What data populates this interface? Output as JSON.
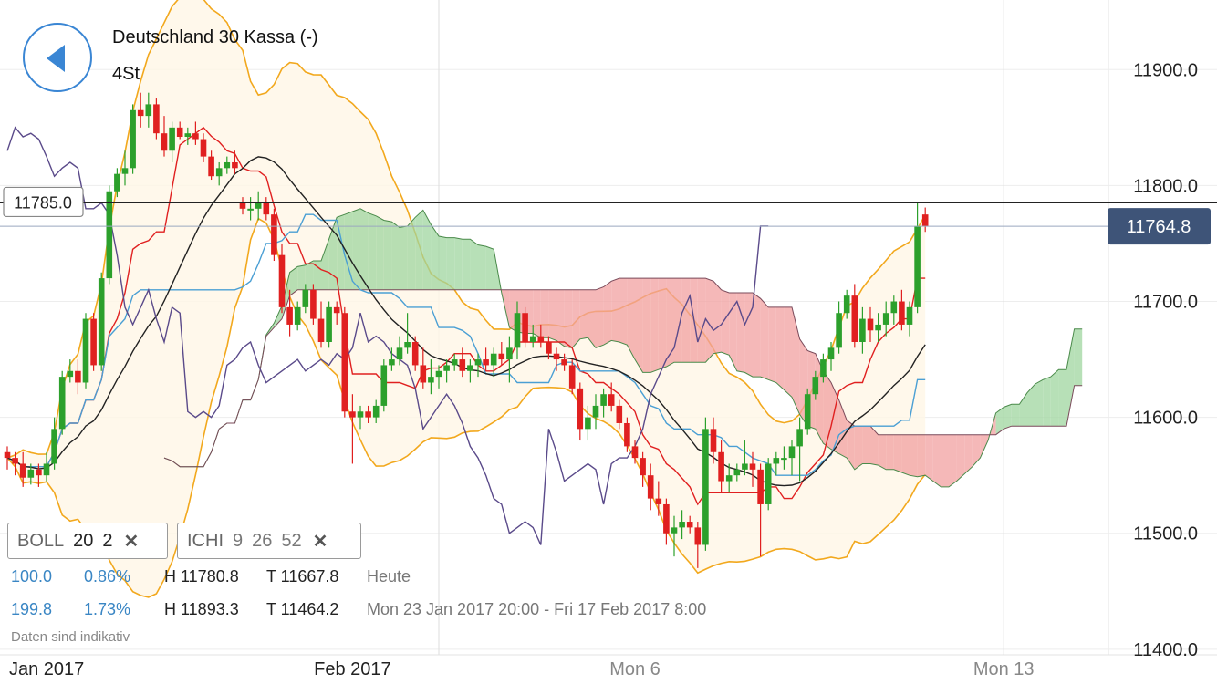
{
  "header": {
    "title": "Deutschland 30 Kassa (-)",
    "timeframe": "4St"
  },
  "indicators": [
    {
      "name": "BOLL",
      "p1": "20",
      "p2": "2",
      "p3": ""
    },
    {
      "name": "ICHI",
      "p1": "9",
      "p2": "26",
      "p3": "52"
    }
  ],
  "stats": {
    "row1": {
      "pct": "100.0",
      "change": "0.86%",
      "high": "H 11780.8",
      "low": "T 11667.8",
      "period": "Heute"
    },
    "row2": {
      "pct": "199.8",
      "change": "1.73%",
      "high": "H 11893.3",
      "low": "T 11464.2",
      "period": "Mon 23 Jan 2017 20:00 - Fri 17 Feb 2017 8:00"
    }
  },
  "disclaimer": "Daten sind indikativ",
  "price_tag": "11764.8",
  "crosshair_tag": "11785.0",
  "colors": {
    "up": "#2ca02c",
    "down": "#e02020",
    "accent": "#3a86d4",
    "bollinger": "#f2a81d",
    "cloud_up": "#9fd69f",
    "cloud_down": "#f2a0a0"
  },
  "chart_data": {
    "type": "candlestick",
    "title": "Deutschland 30 Kassa (-)",
    "ylim": [
      11370,
      11960
    ],
    "y_ticks": [
      "11900.0",
      "11800.0",
      "11700.0",
      "11600.0",
      "11500.0",
      "11400.0"
    ],
    "y_tick_values": [
      11900,
      11800,
      11700,
      11600,
      11500,
      11400
    ],
    "x_labels": [
      "Jan 2017",
      "Feb 2017",
      "Mon 6",
      "Mon 13"
    ],
    "x_label_index": [
      0,
      44,
      80,
      127
    ],
    "x_gridline_index": [
      55,
      127
    ],
    "candles": [
      [
        11570,
        11575,
        11555,
        11565
      ],
      [
        11565,
        11570,
        11550,
        11560
      ],
      [
        11560,
        11570,
        11540,
        11548
      ],
      [
        11548,
        11560,
        11542,
        11555
      ],
      [
        11555,
        11560,
        11540,
        11550
      ],
      [
        11550,
        11570,
        11545,
        11560
      ],
      [
        11560,
        11600,
        11555,
        11590
      ],
      [
        11590,
        11640,
        11585,
        11635
      ],
      [
        11635,
        11650,
        11630,
        11640
      ],
      [
        11640,
        11650,
        11620,
        11630
      ],
      [
        11630,
        11690,
        11625,
        11685
      ],
      [
        11685,
        11690,
        11640,
        11645
      ],
      [
        11645,
        11725,
        11640,
        11720
      ],
      [
        11720,
        11800,
        11715,
        11795
      ],
      [
        11795,
        11815,
        11790,
        11810
      ],
      [
        11810,
        11830,
        11800,
        11815
      ],
      [
        11815,
        11870,
        11810,
        11865
      ],
      [
        11865,
        11880,
        11850,
        11860
      ],
      [
        11860,
        11880,
        11850,
        11870
      ],
      [
        11870,
        11875,
        11840,
        11845
      ],
      [
        11845,
        11860,
        11825,
        11830
      ],
      [
        11830,
        11855,
        11820,
        11850
      ],
      [
        11850,
        11855,
        11840,
        11842
      ],
      [
        11842,
        11850,
        11835,
        11845
      ],
      [
        11845,
        11855,
        11835,
        11840
      ],
      [
        11840,
        11845,
        11820,
        11825
      ],
      [
        11825,
        11830,
        11805,
        11808
      ],
      [
        11808,
        11820,
        11800,
        11815
      ],
      [
        11815,
        11825,
        11810,
        11820
      ],
      [
        11820,
        11830,
        11810,
        11815
      ],
      [
        11785,
        11790,
        11775,
        11780
      ],
      [
        11780,
        11790,
        11770,
        11780
      ],
      [
        11780,
        11795,
        11770,
        11785
      ],
      [
        11785,
        11790,
        11770,
        11775
      ],
      [
        11775,
        11780,
        11735,
        11740
      ],
      [
        11740,
        11750,
        11690,
        11695
      ],
      [
        11695,
        11710,
        11670,
        11680
      ],
      [
        11680,
        11700,
        11675,
        11695
      ],
      [
        11695,
        11715,
        11690,
        11710
      ],
      [
        11710,
        11715,
        11680,
        11685
      ],
      [
        11685,
        11700,
        11660,
        11665
      ],
      [
        11665,
        11700,
        11660,
        11695
      ],
      [
        11695,
        11700,
        11680,
        11690
      ],
      [
        11690,
        11695,
        11600,
        11605
      ],
      [
        11605,
        11620,
        11560,
        11600
      ],
      [
        11600,
        11610,
        11590,
        11605
      ],
      [
        11605,
        11610,
        11595,
        11600
      ],
      [
        11600,
        11615,
        11595,
        11610
      ],
      [
        11610,
        11650,
        11605,
        11645
      ],
      [
        11645,
        11660,
        11640,
        11650
      ],
      [
        11650,
        11670,
        11645,
        11660
      ],
      [
        11660,
        11690,
        11655,
        11665
      ],
      [
        11665,
        11670,
        11640,
        11645
      ],
      [
        11645,
        11660,
        11625,
        11630
      ],
      [
        11630,
        11650,
        11620,
        11635
      ],
      [
        11635,
        11645,
        11625,
        11640
      ],
      [
        11640,
        11650,
        11630,
        11645
      ],
      [
        11645,
        11655,
        11640,
        11650
      ],
      [
        11650,
        11660,
        11635,
        11640
      ],
      [
        11640,
        11650,
        11630,
        11645
      ],
      [
        11645,
        11655,
        11635,
        11650
      ],
      [
        11650,
        11660,
        11640,
        11645
      ],
      [
        11645,
        11660,
        11635,
        11655
      ],
      [
        11655,
        11665,
        11645,
        11650
      ],
      [
        11650,
        11670,
        11630,
        11660
      ],
      [
        11660,
        11700,
        11650,
        11690
      ],
      [
        11690,
        11695,
        11660,
        11665
      ],
      [
        11665,
        11680,
        11660,
        11670
      ],
      [
        11670,
        11680,
        11660,
        11665
      ],
      [
        11665,
        11670,
        11650,
        11655
      ],
      [
        11655,
        11660,
        11640,
        11650
      ],
      [
        11650,
        11655,
        11640,
        11645
      ],
      [
        11645,
        11650,
        11620,
        11625
      ],
      [
        11625,
        11630,
        11580,
        11590
      ],
      [
        11590,
        11610,
        11580,
        11600
      ],
      [
        11600,
        11620,
        11590,
        11610
      ],
      [
        11610,
        11625,
        11600,
        11620
      ],
      [
        11620,
        11630,
        11605,
        11610
      ],
      [
        11610,
        11615,
        11590,
        11595
      ],
      [
        11595,
        11600,
        11570,
        11575
      ],
      [
        11575,
        11580,
        11560,
        11565
      ],
      [
        11565,
        11570,
        11540,
        11550
      ],
      [
        11550,
        11560,
        11520,
        11530
      ],
      [
        11530,
        11545,
        11515,
        11525
      ],
      [
        11525,
        11530,
        11490,
        11500
      ],
      [
        11500,
        11515,
        11480,
        11505
      ],
      [
        11505,
        11520,
        11495,
        11510
      ],
      [
        11510,
        11515,
        11500,
        11505
      ],
      [
        11505,
        11510,
        11470,
        11490
      ],
      [
        11490,
        11600,
        11485,
        11590
      ],
      [
        11590,
        11600,
        11560,
        11570
      ],
      [
        11570,
        11580,
        11535,
        11545
      ],
      [
        11545,
        11560,
        11535,
        11550
      ],
      [
        11550,
        11560,
        11545,
        11555
      ],
      [
        11555,
        11580,
        11550,
        11560
      ],
      [
        11560,
        11570,
        11540,
        11555
      ],
      [
        11555,
        11560,
        11480,
        11525
      ],
      [
        11525,
        11565,
        11520,
        11560
      ],
      [
        11560,
        11570,
        11550,
        11565
      ],
      [
        11565,
        11575,
        11555,
        11565
      ],
      [
        11565,
        11580,
        11550,
        11575
      ],
      [
        11575,
        11600,
        11545,
        11590
      ],
      [
        11590,
        11625,
        11585,
        11620
      ],
      [
        11620,
        11640,
        11615,
        11635
      ],
      [
        11635,
        11655,
        11630,
        11650
      ],
      [
        11650,
        11665,
        11640,
        11660
      ],
      [
        11660,
        11700,
        11655,
        11690
      ],
      [
        11690,
        11710,
        11685,
        11705
      ],
      [
        11705,
        11715,
        11660,
        11665
      ],
      [
        11665,
        11695,
        11655,
        11685
      ],
      [
        11685,
        11695,
        11665,
        11675
      ],
      [
        11675,
        11690,
        11665,
        11680
      ],
      [
        11680,
        11700,
        11670,
        11690
      ],
      [
        11690,
        11705,
        11680,
        11700
      ],
      [
        11700,
        11710,
        11675,
        11680
      ],
      [
        11680,
        11700,
        11670,
        11695
      ],
      [
        11695,
        11785,
        11690,
        11765
      ],
      [
        11775,
        11781,
        11760,
        11765
      ]
    ],
    "last_price": 11764.8,
    "crosshair_price": 11785.0
  }
}
